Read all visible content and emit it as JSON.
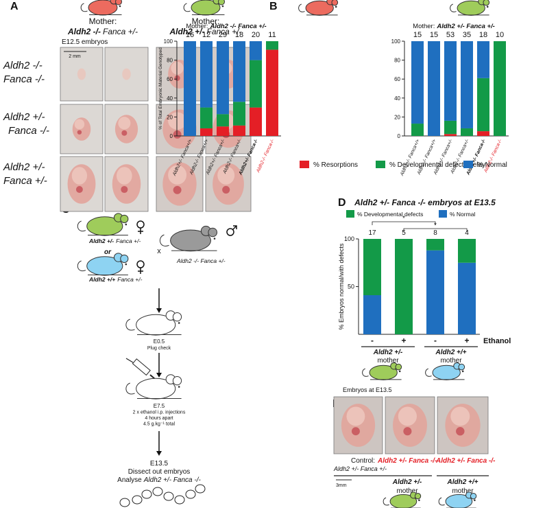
{
  "panel_labels": [
    "A",
    "B",
    "C",
    "D",
    "E"
  ],
  "panel_a": {
    "mothers": [
      {
        "label": "Mother:",
        "genotype": [
          "Aldh2 -/-",
          "Fanca +/-"
        ]
      },
      {
        "label": "Mother:",
        "genotype": [
          "Aldh2 +/-",
          "Fanca +/-"
        ]
      }
    ],
    "stage": "E12.5 embryos",
    "scale": "2 mm",
    "rows": [
      [
        "Aldh2 -/-",
        "Fanca -/-"
      ],
      [
        "Aldh2 +/-",
        "Fanca -/-"
      ],
      [
        "Aldh2 +/-",
        "Fanca +/-"
      ]
    ]
  },
  "panel_c": {
    "mother1": [
      "Aldh2 +/-",
      "Fanca +/-"
    ],
    "or": "or",
    "mother2": [
      "Aldh2 +/+",
      "Fanca +/-"
    ],
    "cross": "x",
    "father": "Aldh2 -/- Fanca +/-",
    "steps": [
      [
        "E0.5",
        "Plug check"
      ],
      [
        "E7.5",
        "2 x ethanol i.p. injections",
        "4 hours apart",
        "4.5 g.kg⁻¹ total"
      ],
      [
        "E13.5",
        "Dissect out embryos"
      ]
    ],
    "analyse": [
      "Analyse",
      "Aldh2 +/- Fanca -/-"
    ]
  },
  "panel_e": {
    "title": "Embryos at E13.5",
    "control": "Control:",
    "control_genotype": "Aldh2 +/- Fanca +/-",
    "mutants": [
      "Aldh2 +/- Fanca -/-",
      "Aldh2 +/- Fanca -/-"
    ],
    "scale": "3mm",
    "mothers": [
      [
        "Aldh2 +/-",
        "mother"
      ],
      [
        "Aldh2 +/+",
        "mother"
      ]
    ]
  },
  "chart_data": [
    {
      "type": "bar",
      "stacked": true,
      "subtitle": [
        "Mother:",
        "Aldh2 -/- Fanca +/-"
      ],
      "ylabel": "% of Total Embryonic Material Genotyped",
      "categories": [
        "Aldh2+/- Fanca+/+",
        "Aldh2-/- Fanca+/+",
        "Aldh2+/- Fanca+/-",
        "Aldh2-/- Fanca+/-",
        "Aldh2+/- Fanca-/-",
        "Aldh2-/- Fanca-/-"
      ],
      "counts": [
        16,
        12,
        29,
        18,
        20,
        11
      ],
      "series": [
        {
          "name": "% Resorptions",
          "color": "#e41f26",
          "values": [
            0,
            8,
            10,
            11,
            30,
            91
          ]
        },
        {
          "name": "% Developmental defects/delay",
          "color": "#139a48",
          "values": [
            0,
            22,
            13,
            25,
            50,
            9
          ]
        },
        {
          "name": "% Normal",
          "color": "#1f6fbf",
          "values": [
            100,
            70,
            77,
            64,
            20,
            0
          ]
        }
      ],
      "ylim": [
        0,
        100
      ],
      "yticks": [
        0,
        20,
        40,
        60,
        80,
        100
      ]
    },
    {
      "type": "bar",
      "stacked": true,
      "subtitle": [
        "Mother:",
        "Aldh2 +/- Fanca +/-"
      ],
      "categories": [
        "Aldh2+/- Fanca+/+",
        "Aldh2-/- Fanca+/+",
        "Aldh2+/- Fanca+/-",
        "Aldh2-/- Fanca+/-",
        "Aldh2+/- Fanca-/-",
        "Aldh2-/- Fanca-/-"
      ],
      "counts": [
        15,
        15,
        53,
        35,
        18,
        10
      ],
      "series": [
        {
          "color": "#e41f26",
          "values": [
            0,
            0,
            2,
            0,
            5,
            0
          ]
        },
        {
          "color": "#139a48",
          "values": [
            13,
            0,
            14,
            8,
            56,
            100
          ]
        },
        {
          "color": "#1f6fbf",
          "values": [
            87,
            100,
            84,
            92,
            39,
            0
          ]
        }
      ],
      "ylim": [
        0,
        100
      ],
      "yticks": [
        0,
        20,
        40,
        60,
        80,
        100
      ]
    },
    {
      "type": "bar",
      "stacked": true,
      "title": "Aldh2 +/- Fanca -/- embryos at E13.5",
      "ylabel": "% Embryos normal/with defects",
      "xlabel": "Ethanol",
      "categories": [
        "-",
        "+",
        "-",
        "+"
      ],
      "counts": [
        17,
        5,
        8,
        4
      ],
      "series": [
        {
          "name": "% Normal",
          "color": "#1f6fbf",
          "values": [
            41,
            0,
            88,
            75
          ]
        },
        {
          "name": "% Developmental defects",
          "color": "#139a48",
          "values": [
            59,
            100,
            12,
            25
          ]
        }
      ],
      "ylim": [
        0,
        100
      ],
      "yticks": [
        50,
        100
      ],
      "annotations": [
        "*",
        "*"
      ],
      "groups": [
        [
          "Aldh2 +/-",
          "mother"
        ],
        [
          "Aldh2 +/+",
          "mother"
        ]
      ]
    }
  ]
}
